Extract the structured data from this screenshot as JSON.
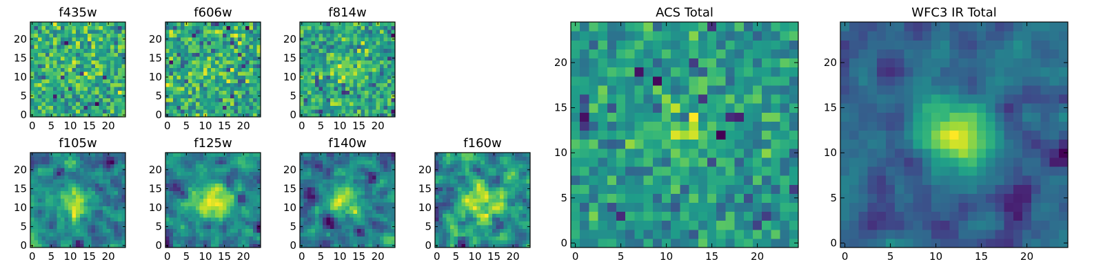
{
  "chart_data": [
    {
      "type": "heatmap",
      "title": "f435w",
      "grid_size": 25,
      "seed": 11,
      "smoothing": 0,
      "center_strength": 0.05,
      "xlim": [
        0,
        25
      ],
      "ylim": [
        0,
        25
      ],
      "xticks": [
        0,
        5,
        10,
        15,
        20
      ],
      "yticks": [
        0,
        5,
        10,
        15,
        20
      ],
      "xtick_labels": [
        "0",
        "5",
        "10",
        "15",
        "20"
      ],
      "ytick_labels": [
        "0",
        "5",
        "10",
        "15",
        "20"
      ],
      "colormap": "viridis"
    },
    {
      "type": "heatmap",
      "title": "f606w",
      "grid_size": 25,
      "seed": 23,
      "smoothing": 0,
      "center_strength": 0.15,
      "xlim": [
        0,
        25
      ],
      "ylim": [
        0,
        25
      ],
      "xticks": [
        0,
        5,
        10,
        15,
        20
      ],
      "yticks": [
        0,
        5,
        10,
        15,
        20
      ],
      "xtick_labels": [
        "0",
        "5",
        "10",
        "15",
        "20"
      ],
      "ytick_labels": [
        "0",
        "5",
        "10",
        "15",
        "20"
      ],
      "colormap": "viridis"
    },
    {
      "type": "heatmap",
      "title": "f814w",
      "grid_size": 25,
      "seed": 37,
      "smoothing": 0,
      "center_strength": 0.18,
      "xlim": [
        0,
        25
      ],
      "ylim": [
        0,
        25
      ],
      "xticks": [
        0,
        5,
        10,
        15,
        20
      ],
      "yticks": [
        0,
        5,
        10,
        15,
        20
      ],
      "xtick_labels": [
        "0",
        "5",
        "10",
        "15",
        "20"
      ],
      "ytick_labels": [
        "0",
        "5",
        "10",
        "15",
        "20"
      ],
      "colormap": "viridis"
    },
    {
      "type": "heatmap",
      "title": "f105w",
      "grid_size": 25,
      "seed": 41,
      "smoothing": 1,
      "center_strength": 0.25,
      "xlim": [
        0,
        25
      ],
      "ylim": [
        0,
        25
      ],
      "xticks": [
        0,
        5,
        10,
        15,
        20
      ],
      "yticks": [
        0,
        5,
        10,
        15,
        20
      ],
      "xtick_labels": [
        "0",
        "5",
        "10",
        "15",
        "20"
      ],
      "ytick_labels": [
        "0",
        "5",
        "10",
        "15",
        "20"
      ],
      "colormap": "viridis"
    },
    {
      "type": "heatmap",
      "title": "f125w",
      "grid_size": 25,
      "seed": 53,
      "smoothing": 1,
      "center_strength": 0.3,
      "xlim": [
        0,
        25
      ],
      "ylim": [
        0,
        25
      ],
      "xticks": [
        0,
        5,
        10,
        15,
        20
      ],
      "yticks": [
        0,
        5,
        10,
        15,
        20
      ],
      "xtick_labels": [
        "0",
        "5",
        "10",
        "15",
        "20"
      ],
      "ytick_labels": [
        "0",
        "5",
        "10",
        "15",
        "20"
      ],
      "colormap": "viridis"
    },
    {
      "type": "heatmap",
      "title": "f140w",
      "grid_size": 25,
      "seed": 67,
      "smoothing": 1,
      "center_strength": 0.25,
      "xlim": [
        0,
        25
      ],
      "ylim": [
        0,
        25
      ],
      "xticks": [
        0,
        5,
        10,
        15,
        20
      ],
      "yticks": [
        0,
        5,
        10,
        15,
        20
      ],
      "xtick_labels": [
        "0",
        "5",
        "10",
        "15",
        "20"
      ],
      "ytick_labels": [
        "0",
        "5",
        "10",
        "15",
        "20"
      ],
      "colormap": "viridis"
    },
    {
      "type": "heatmap",
      "title": "f160w",
      "grid_size": 25,
      "seed": 79,
      "smoothing": 1,
      "center_strength": 0.25,
      "xlim": [
        0,
        25
      ],
      "ylim": [
        0,
        25
      ],
      "xticks": [
        0,
        5,
        10,
        15,
        20
      ],
      "yticks": [
        0,
        5,
        10,
        15,
        20
      ],
      "xtick_labels": [
        "0",
        "5",
        "10",
        "15",
        "20"
      ],
      "ytick_labels": [
        "0",
        "5",
        "10",
        "15",
        "20"
      ],
      "colormap": "viridis"
    },
    {
      "type": "heatmap",
      "title": "ACS Total",
      "grid_size": 25,
      "seed": 97,
      "smoothing": 0,
      "center_strength": 0.35,
      "xlim": [
        0,
        25
      ],
      "ylim": [
        0,
        25
      ],
      "xticks": [
        0,
        5,
        10,
        15,
        20
      ],
      "yticks": [
        0,
        5,
        10,
        15,
        20
      ],
      "xtick_labels": [
        "0",
        "5",
        "10",
        "15",
        "20"
      ],
      "ytick_labels": [
        "0",
        "5",
        "10",
        "15",
        "20"
      ],
      "colormap": "viridis"
    },
    {
      "type": "heatmap",
      "title": "WFC3 IR Total",
      "grid_size": 25,
      "seed": 113,
      "smoothing": 1,
      "center_strength": 0.55,
      "xlim": [
        0,
        25
      ],
      "ylim": [
        0,
        25
      ],
      "xticks": [
        0,
        5,
        10,
        15,
        20
      ],
      "yticks": [
        0,
        5,
        10,
        15,
        20
      ],
      "xtick_labels": [
        "0",
        "5",
        "10",
        "15",
        "20"
      ],
      "ytick_labels": [
        "0",
        "5",
        "10",
        "15",
        "20"
      ],
      "colormap": "viridis"
    }
  ]
}
